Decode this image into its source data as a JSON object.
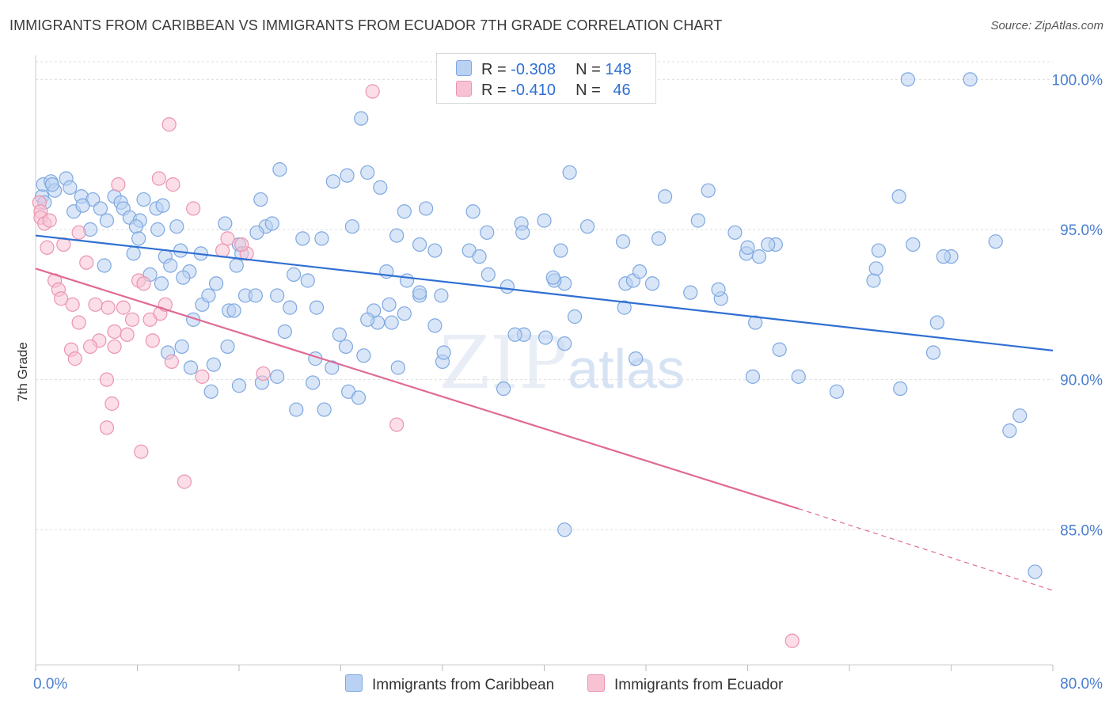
{
  "title": "IMMIGRANTS FROM CARIBBEAN VS IMMIGRANTS FROM ECUADOR 7TH GRADE CORRELATION CHART",
  "source": "Source: ZipAtlas.com",
  "watermark": {
    "zip": "ZIP",
    "atlas": "atlas"
  },
  "legend": {
    "rows": [
      {
        "r_label": "R =",
        "r_value": "-0.308",
        "n_label": "N =",
        "n_value": "148"
      },
      {
        "r_label": "R =",
        "r_value": "-0.410",
        "n_label": "N =",
        "n_value": "46"
      }
    ]
  },
  "bottom_legend": {
    "caribbean": "Immigrants from Caribbean",
    "ecuador": "Immigrants from Ecuador"
  },
  "colors": {
    "caribbean_fill": "#b9d1f2",
    "caribbean_stroke": "#7ea8e0",
    "caribbean_line": "#2f6fd3",
    "ecuador_fill": "#f7c3d3",
    "ecuador_stroke": "#eb94b0",
    "ecuador_line": "#e06a95",
    "grid": "#dddddd",
    "tick_text": "#4a7fd0"
  },
  "chart_data": {
    "type": "scatter",
    "title": "IMMIGRANTS FROM CARIBBEAN VS IMMIGRANTS FROM ECUADOR 7TH GRADE CORRELATION CHART",
    "xlabel": "",
    "ylabel": "7th Grade",
    "xlim": [
      0,
      80
    ],
    "ylim": [
      80.5,
      100.8
    ],
    "x_tick_labels": [
      "0.0%",
      "80.0%"
    ],
    "y_ticks": [
      85,
      90,
      95,
      100
    ],
    "y_tick_labels": [
      "85.0%",
      "90.0%",
      "95.0%",
      "100.0%"
    ],
    "grid": true,
    "legend_position": "top-center",
    "series": [
      {
        "name": "Immigrants from Caribbean",
        "points": [
          [
            0.5,
            96.1
          ],
          [
            0.7,
            95.9
          ],
          [
            0.6,
            96.5
          ],
          [
            1.2,
            96.6
          ],
          [
            1.5,
            96.3
          ],
          [
            1.3,
            96.5
          ],
          [
            2.4,
            96.7
          ],
          [
            2.7,
            96.4
          ],
          [
            3.6,
            96.1
          ],
          [
            4.5,
            96.0
          ],
          [
            3.0,
            95.6
          ],
          [
            3.7,
            95.8
          ],
          [
            5.1,
            95.7
          ],
          [
            6.2,
            96.1
          ],
          [
            6.7,
            95.9
          ],
          [
            6.9,
            95.7
          ],
          [
            8.5,
            96.0
          ],
          [
            9.5,
            95.7
          ],
          [
            10.0,
            95.8
          ],
          [
            5.6,
            95.3
          ],
          [
            7.4,
            95.4
          ],
          [
            9.6,
            95.0
          ],
          [
            11.1,
            95.1
          ],
          [
            8.2,
            95.3
          ],
          [
            4.3,
            95.0
          ],
          [
            7.9,
            95.1
          ],
          [
            8.1,
            94.7
          ],
          [
            14.9,
            95.2
          ],
          [
            16.0,
            94.5
          ],
          [
            17.7,
            96.0
          ],
          [
            18.1,
            95.1
          ],
          [
            18.6,
            95.2
          ],
          [
            17.4,
            94.9
          ],
          [
            19.2,
            97.0
          ],
          [
            21.0,
            94.7
          ],
          [
            22.5,
            94.7
          ],
          [
            23.4,
            96.6
          ],
          [
            24.5,
            96.8
          ],
          [
            26.1,
            96.9
          ],
          [
            24.9,
            95.1
          ],
          [
            25.6,
            98.7
          ],
          [
            27.1,
            96.4
          ],
          [
            28.4,
            94.8
          ],
          [
            29.0,
            95.6
          ],
          [
            30.2,
            94.5
          ],
          [
            31.4,
            94.3
          ],
          [
            30.7,
            95.7
          ],
          [
            34.4,
            95.6
          ],
          [
            35.5,
            94.9
          ],
          [
            34.1,
            94.3
          ],
          [
            38.2,
            95.2
          ],
          [
            38.3,
            94.9
          ],
          [
            40.0,
            95.3
          ],
          [
            41.3,
            94.3
          ],
          [
            42.0,
            96.9
          ],
          [
            43.4,
            95.1
          ],
          [
            41.6,
            93.2
          ],
          [
            40.8,
            93.3
          ],
          [
            37.1,
            93.1
          ],
          [
            40.7,
            93.4
          ],
          [
            46.2,
            94.6
          ],
          [
            46.4,
            93.2
          ],
          [
            48.5,
            93.2
          ],
          [
            47.0,
            93.3
          ],
          [
            47.5,
            93.6
          ],
          [
            49.0,
            94.7
          ],
          [
            49.5,
            96.1
          ],
          [
            52.1,
            95.3
          ],
          [
            52.9,
            96.3
          ],
          [
            55.0,
            94.9
          ],
          [
            55.9,
            94.2
          ],
          [
            56.0,
            94.4
          ],
          [
            58.2,
            94.5
          ],
          [
            51.5,
            92.9
          ],
          [
            53.9,
            92.7
          ],
          [
            53.7,
            93.0
          ],
          [
            38.4,
            91.5
          ],
          [
            37.7,
            91.5
          ],
          [
            35.6,
            93.5
          ],
          [
            34.9,
            94.1
          ],
          [
            31.9,
            92.8
          ],
          [
            30.2,
            92.8
          ],
          [
            29.2,
            93.3
          ],
          [
            29.0,
            92.2
          ],
          [
            27.6,
            93.6
          ],
          [
            26.9,
            91.9
          ],
          [
            28.0,
            91.9
          ],
          [
            26.6,
            92.3
          ],
          [
            26.1,
            92.0
          ],
          [
            27.8,
            92.5
          ],
          [
            30.2,
            92.9
          ],
          [
            31.4,
            91.8
          ],
          [
            32.0,
            90.6
          ],
          [
            32.1,
            90.9
          ],
          [
            28.5,
            90.4
          ],
          [
            23.3,
            90.4
          ],
          [
            22.0,
            90.7
          ],
          [
            22.7,
            89.0
          ],
          [
            24.6,
            89.6
          ],
          [
            25.4,
            89.4
          ],
          [
            21.8,
            89.9
          ],
          [
            20.5,
            89.0
          ],
          [
            19.0,
            90.1
          ],
          [
            17.8,
            89.9
          ],
          [
            16.0,
            89.8
          ],
          [
            15.1,
            91.1
          ],
          [
            14.0,
            90.5
          ],
          [
            13.8,
            89.6
          ],
          [
            12.2,
            90.4
          ],
          [
            10.4,
            90.9
          ],
          [
            11.5,
            91.1
          ],
          [
            12.4,
            92.0
          ],
          [
            13.1,
            92.5
          ],
          [
            13.6,
            92.8
          ],
          [
            14.2,
            93.2
          ],
          [
            15.2,
            92.3
          ],
          [
            15.6,
            92.3
          ],
          [
            15.8,
            93.8
          ],
          [
            16.5,
            92.8
          ],
          [
            17.3,
            92.8
          ],
          [
            16.2,
            94.2
          ],
          [
            19.0,
            92.8
          ],
          [
            20.0,
            92.4
          ],
          [
            19.6,
            91.6
          ],
          [
            20.3,
            93.5
          ],
          [
            21.4,
            93.3
          ],
          [
            22.1,
            92.4
          ],
          [
            23.9,
            91.5
          ],
          [
            24.4,
            91.1
          ],
          [
            25.8,
            90.8
          ],
          [
            12.1,
            93.6
          ],
          [
            11.6,
            93.4
          ],
          [
            11.4,
            94.3
          ],
          [
            10.2,
            94.1
          ],
          [
            10.6,
            93.8
          ],
          [
            7.7,
            94.2
          ],
          [
            5.4,
            93.8
          ],
          [
            9.0,
            93.5
          ],
          [
            9.9,
            93.2
          ],
          [
            13.0,
            94.2
          ],
          [
            36.8,
            89.7
          ],
          [
            42.4,
            92.1
          ],
          [
            46.3,
            92.4
          ],
          [
            40.1,
            91.4
          ],
          [
            56.9,
            94.1
          ],
          [
            58.5,
            91.0
          ],
          [
            60.0,
            90.1
          ],
          [
            66.3,
            94.3
          ],
          [
            67.9,
            96.1
          ],
          [
            68.6,
            100.0
          ],
          [
            73.5,
            100.0
          ],
          [
            70.6,
            90.9
          ],
          [
            69.0,
            94.5
          ],
          [
            77.4,
            88.8
          ],
          [
            76.6,
            88.3
          ],
          [
            63.0,
            89.6
          ],
          [
            65.9,
            93.3
          ],
          [
            66.1,
            93.7
          ],
          [
            41.6,
            85.0
          ],
          [
            68.0,
            89.7
          ],
          [
            72.0,
            94.1
          ],
          [
            71.4,
            94.1
          ],
          [
            57.6,
            94.5
          ],
          [
            47.2,
            90.7
          ],
          [
            75.5,
            94.6
          ],
          [
            41.6,
            91.2
          ],
          [
            56.6,
            91.9
          ],
          [
            70.9,
            91.9
          ],
          [
            78.6,
            83.6
          ],
          [
            56.4,
            90.1
          ]
        ],
        "trend": {
          "x": [
            0,
            80
          ],
          "y": [
            94.8,
            90.97
          ]
        }
      },
      {
        "name": "Immigrants from Ecuador",
        "points": [
          [
            0.3,
            95.9
          ],
          [
            0.4,
            95.6
          ],
          [
            0.4,
            95.4
          ],
          [
            0.7,
            95.2
          ],
          [
            1.1,
            95.3
          ],
          [
            0.9,
            94.4
          ],
          [
            2.2,
            94.5
          ],
          [
            3.4,
            94.9
          ],
          [
            4.0,
            93.9
          ],
          [
            6.5,
            96.5
          ],
          [
            9.7,
            96.7
          ],
          [
            10.8,
            96.5
          ],
          [
            10.5,
            98.5
          ],
          [
            12.4,
            95.7
          ],
          [
            15.1,
            94.7
          ],
          [
            16.6,
            94.2
          ],
          [
            14.7,
            94.3
          ],
          [
            16.2,
            94.5
          ],
          [
            26.5,
            99.6
          ],
          [
            1.5,
            93.3
          ],
          [
            1.8,
            93.0
          ],
          [
            2.0,
            92.7
          ],
          [
            2.9,
            92.5
          ],
          [
            4.7,
            92.5
          ],
          [
            5.7,
            92.4
          ],
          [
            6.9,
            92.4
          ],
          [
            8.1,
            93.3
          ],
          [
            8.5,
            93.2
          ],
          [
            9.0,
            92.0
          ],
          [
            9.8,
            92.2
          ],
          [
            10.2,
            92.5
          ],
          [
            7.6,
            92.0
          ],
          [
            6.2,
            91.6
          ],
          [
            6.2,
            91.1
          ],
          [
            5.0,
            91.3
          ],
          [
            4.3,
            91.1
          ],
          [
            3.4,
            91.9
          ],
          [
            2.8,
            91.0
          ],
          [
            7.2,
            91.5
          ],
          [
            9.2,
            91.3
          ],
          [
            3.1,
            90.7
          ],
          [
            5.6,
            90.0
          ],
          [
            6.0,
            89.2
          ],
          [
            5.6,
            88.4
          ],
          [
            8.3,
            87.6
          ],
          [
            11.7,
            86.6
          ],
          [
            10.7,
            90.6
          ],
          [
            13.1,
            90.1
          ],
          [
            17.9,
            90.2
          ],
          [
            28.4,
            88.5
          ],
          [
            59.5,
            81.3
          ]
        ],
        "trend": {
          "x": [
            0,
            60.0
          ],
          "y": [
            93.7,
            85.7
          ]
        },
        "trend_dashed": {
          "x": [
            60.0,
            80
          ],
          "y": [
            85.7,
            82.98
          ]
        }
      }
    ]
  }
}
